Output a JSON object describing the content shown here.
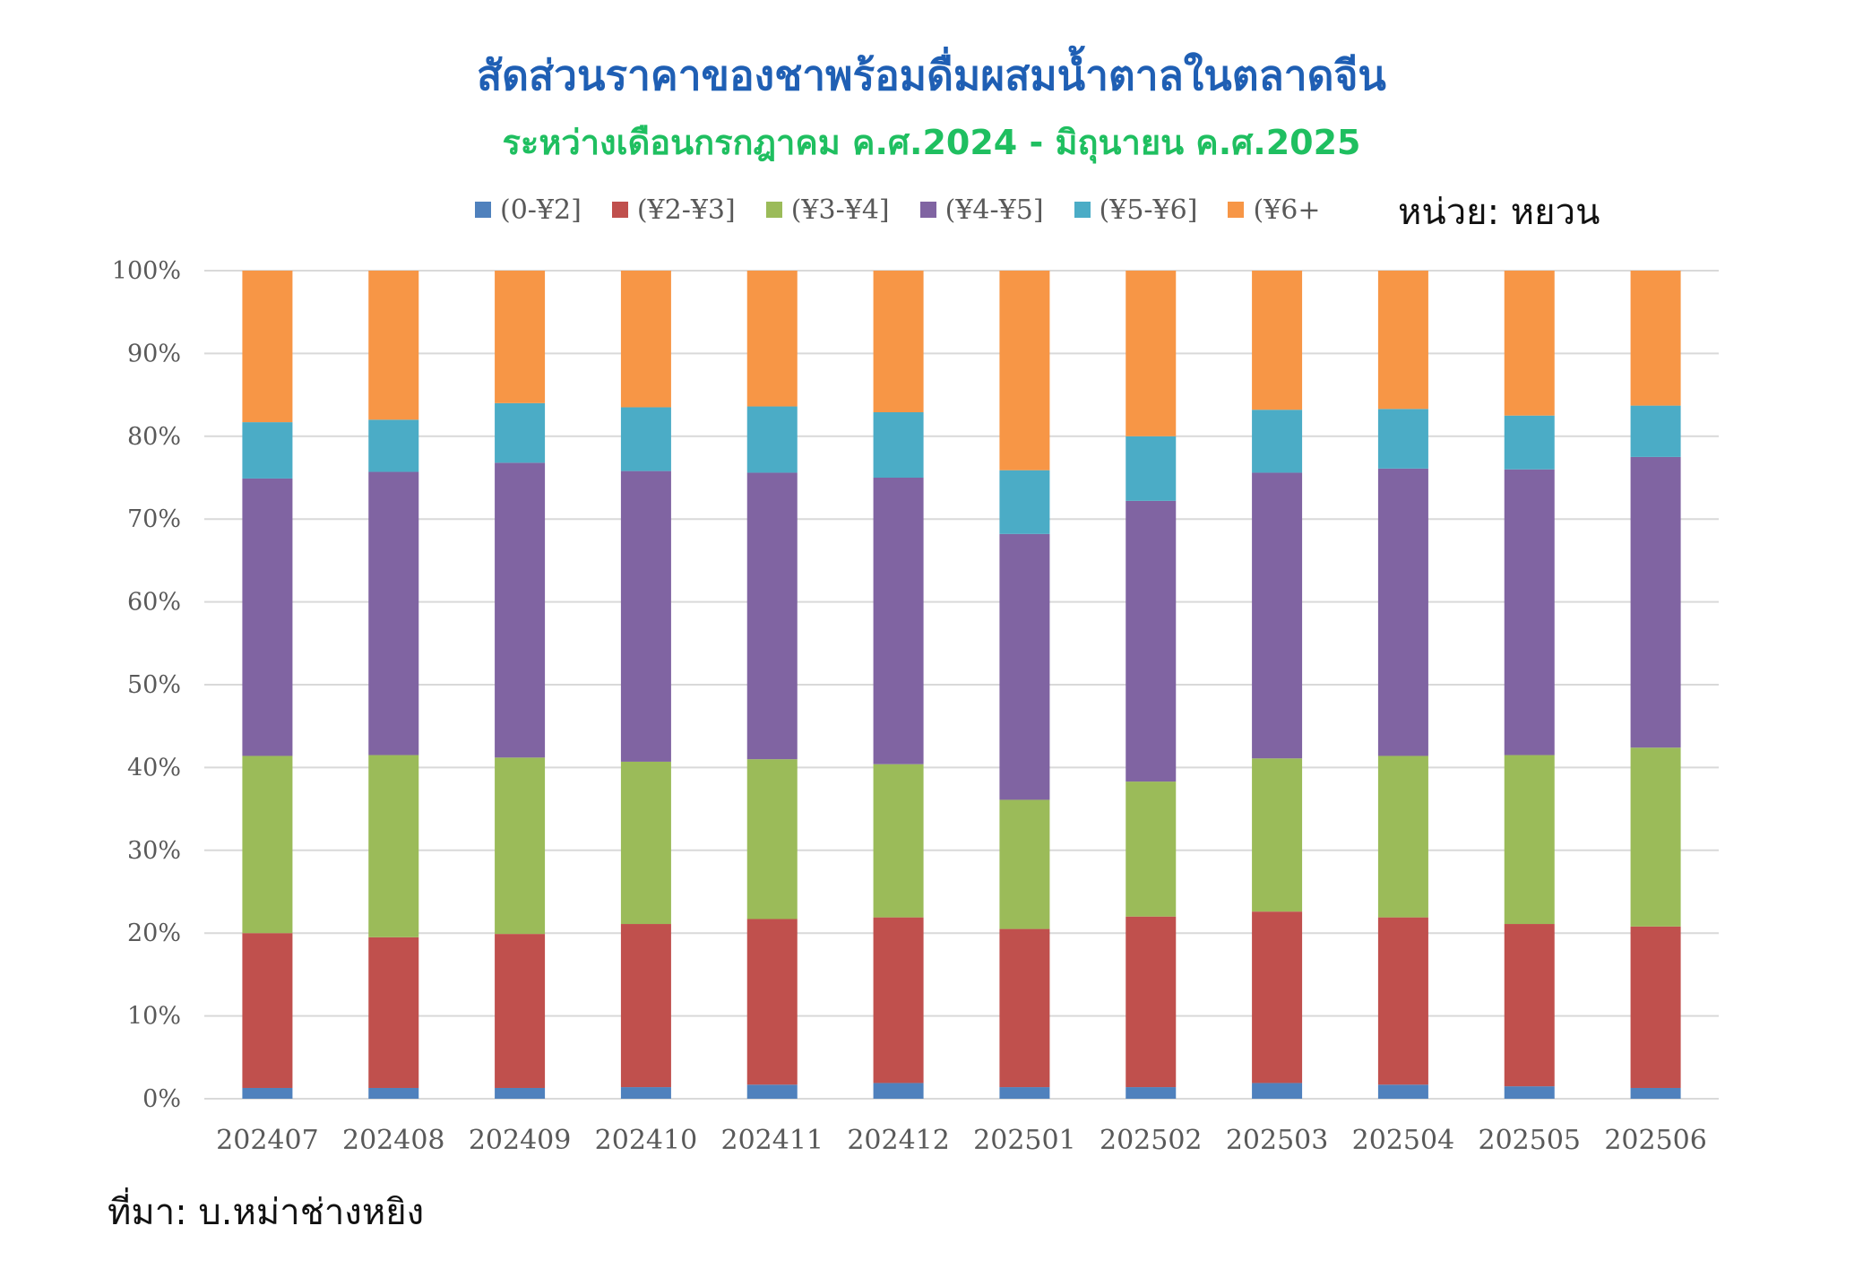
{
  "header": {
    "title": "สัดส่วนราคาของชาพร้อมดื่มผสมน้ำตาลในตลาดจีน",
    "subtitle": "ระหว่างเดือนกรกฎาคม ค.ศ.2024 - มิถุนายน ค.ศ.2025",
    "unit": "หน่วย: หยวน"
  },
  "footer": {
    "source": "ที่มา: บ.หม่าช่างหยิง"
  },
  "chart_data": {
    "type": "bar",
    "stacked": true,
    "percent_stacked": true,
    "title": "สัดส่วนราคาของชาพร้อมดื่มผสมน้ำตาลในตลาดจีน",
    "subtitle": "ระหว่างเดือนกรกฎาคม ค.ศ.2024 - มิถุนายน ค.ศ.2025",
    "xlabel": "",
    "ylabel": "",
    "ylim": [
      0,
      100
    ],
    "y_ticks": [
      "0%",
      "10%",
      "20%",
      "30%",
      "40%",
      "50%",
      "60%",
      "70%",
      "80%",
      "90%",
      "100%"
    ],
    "grid": true,
    "legend_position": "top",
    "categories": [
      "202407",
      "202408",
      "202409",
      "202410",
      "202411",
      "202412",
      "202501",
      "202502",
      "202503",
      "202504",
      "202505",
      "202506"
    ],
    "series": [
      {
        "name": "(0-¥2]",
        "color": "#4f81bd",
        "values": [
          1.3,
          1.3,
          1.3,
          1.4,
          1.7,
          1.9,
          1.4,
          1.4,
          1.9,
          1.7,
          1.5,
          1.3
        ]
      },
      {
        "name": "(¥2-¥3]",
        "color": "#c0504d",
        "values": [
          18.7,
          18.2,
          18.6,
          19.7,
          20.0,
          20.0,
          19.1,
          20.6,
          20.7,
          20.2,
          19.6,
          19.5
        ]
      },
      {
        "name": "(¥3-¥4]",
        "color": "#9bbb59",
        "values": [
          21.4,
          22.0,
          21.3,
          19.6,
          19.3,
          18.5,
          15.6,
          16.3,
          18.5,
          19.5,
          20.4,
          21.6
        ]
      },
      {
        "name": "(¥4-¥5]",
        "color": "#8064a2",
        "values": [
          33.5,
          34.2,
          35.6,
          35.1,
          34.6,
          34.6,
          32.1,
          33.9,
          34.5,
          34.7,
          34.5,
          35.1
        ]
      },
      {
        "name": "(¥5-¥6]",
        "color": "#4bacc6",
        "values": [
          6.8,
          6.3,
          7.2,
          7.7,
          8.0,
          7.9,
          7.7,
          7.8,
          7.6,
          7.2,
          6.5,
          6.2
        ]
      },
      {
        "name": "(¥6+",
        "color": "#f79646",
        "values": [
          18.3,
          18.0,
          16.0,
          16.5,
          16.4,
          17.1,
          24.1,
          20.0,
          16.8,
          16.7,
          17.5,
          16.3
        ]
      }
    ]
  }
}
